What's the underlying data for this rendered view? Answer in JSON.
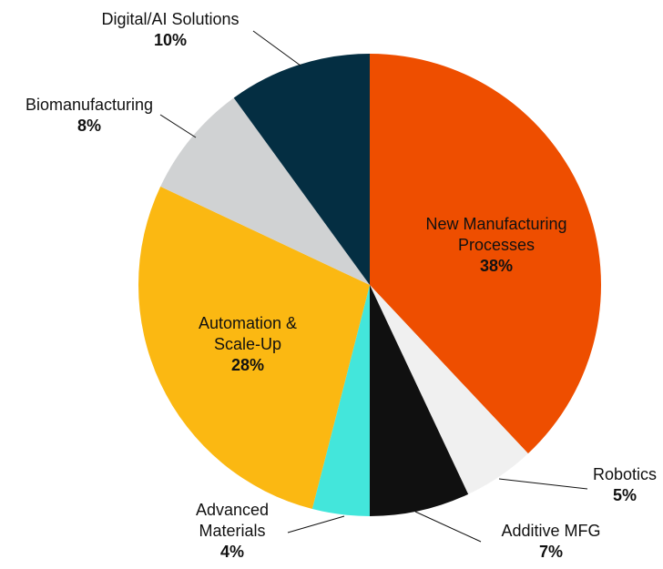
{
  "chart_data": {
    "type": "pie",
    "start_angle_deg": 0,
    "direction": "clockwise",
    "slices": [
      {
        "label": [
          "New Manufacturing",
          "Processes"
        ],
        "value": 38,
        "pct_label": "38%",
        "color": "#EE4E00",
        "label_placement": "inside",
        "text_color": "#111111"
      },
      {
        "label": [
          "Robotics"
        ],
        "value": 5,
        "pct_label": "5%",
        "color": "#F0F0F0",
        "label_placement": "outside",
        "text_color": "#111111"
      },
      {
        "label": [
          "Additive MFG"
        ],
        "value": 7,
        "pct_label": "7%",
        "color": "#101010",
        "label_placement": "outside",
        "text_color": "#111111"
      },
      {
        "label": [
          "Advanced",
          "Materials"
        ],
        "value": 4,
        "pct_label": "4%",
        "color": "#43E6DB",
        "label_placement": "outside",
        "text_color": "#111111"
      },
      {
        "label": [
          "Automation &",
          "Scale-Up"
        ],
        "value": 28,
        "pct_label": "28%",
        "color": "#FBB812",
        "label_placement": "inside",
        "text_color": "#111111"
      },
      {
        "label": [
          "Biomanufacturing"
        ],
        "value": 8,
        "pct_label": "8%",
        "color": "#D0D2D3",
        "label_placement": "outside",
        "text_color": "#111111"
      },
      {
        "label": [
          "Digital/AI Solutions"
        ],
        "value": 10,
        "pct_label": "10%",
        "color": "#042E42",
        "label_placement": "outside",
        "text_color": "#111111"
      }
    ]
  }
}
